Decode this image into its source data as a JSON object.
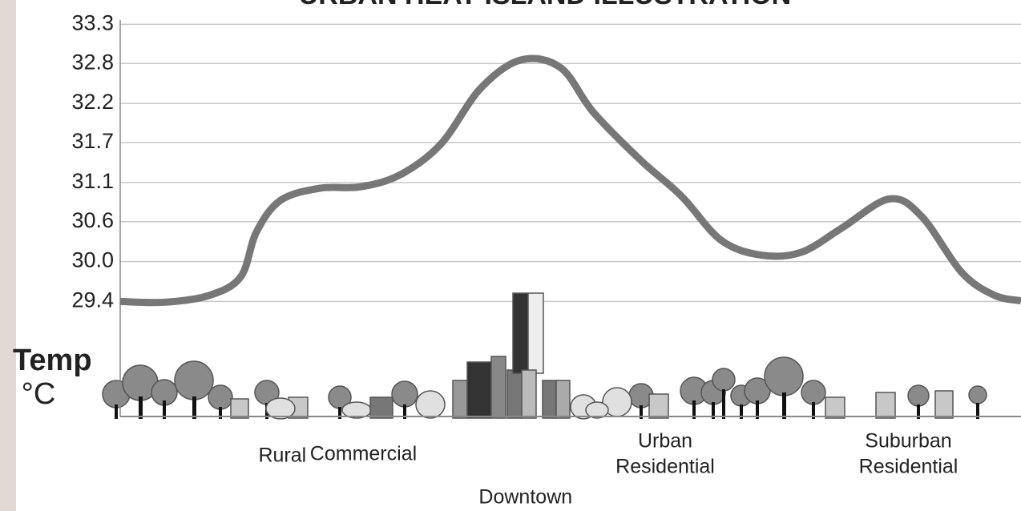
{
  "chart_data": {
    "type": "line",
    "title": "URBAN HEAT ISLAND ILLUSTRATION",
    "ylabel": [
      "Temp",
      "°C"
    ],
    "x": [
      0,
      5,
      10,
      13.4,
      15.1,
      17.8,
      22.2,
      26.7,
      31.1,
      35.6,
      40,
      44.5,
      48.9,
      52.5,
      57.8,
      62.3,
      66.7,
      71.2,
      75.6,
      80.1,
      85.4,
      89,
      93.4,
      97,
      100
    ],
    "values": [
      29.44,
      29.43,
      29.53,
      29.79,
      30.41,
      30.86,
      31.03,
      31.05,
      31.22,
      31.65,
      32.43,
      32.83,
      32.72,
      32.1,
      31.42,
      30.92,
      30.3,
      30.09,
      30.13,
      30.47,
      30.88,
      30.63,
      29.85,
      29.53,
      29.45
    ],
    "color": "#777777",
    "xlim": [
      0,
      100
    ],
    "ylim": [
      27.86,
      33.39
    ],
    "yticks": [
      {
        "value": 33.33,
        "label": "33.3"
      },
      {
        "value": 32.78,
        "label": "32.8"
      },
      {
        "value": 32.22,
        "label": "32.2"
      },
      {
        "value": 31.67,
        "label": "31.7"
      },
      {
        "value": 31.11,
        "label": "31.1"
      },
      {
        "value": 30.56,
        "label": "30.6"
      },
      {
        "value": 30.0,
        "label": "30.0"
      },
      {
        "value": 29.44,
        "label": "29.4"
      }
    ],
    "grid": true,
    "zones": [
      {
        "lines": [
          "Rural"
        ],
        "x": 18
      },
      {
        "lines": [
          "Commercial"
        ],
        "x": 27
      },
      {
        "lines": [
          "Urban",
          "Residential"
        ],
        "x": 60.5
      },
      {
        "lines": [
          "Suburban",
          "Residential"
        ],
        "x": 87.5
      },
      {
        "lines": [
          "Downtown"
        ],
        "x": 45
      }
    ]
  }
}
